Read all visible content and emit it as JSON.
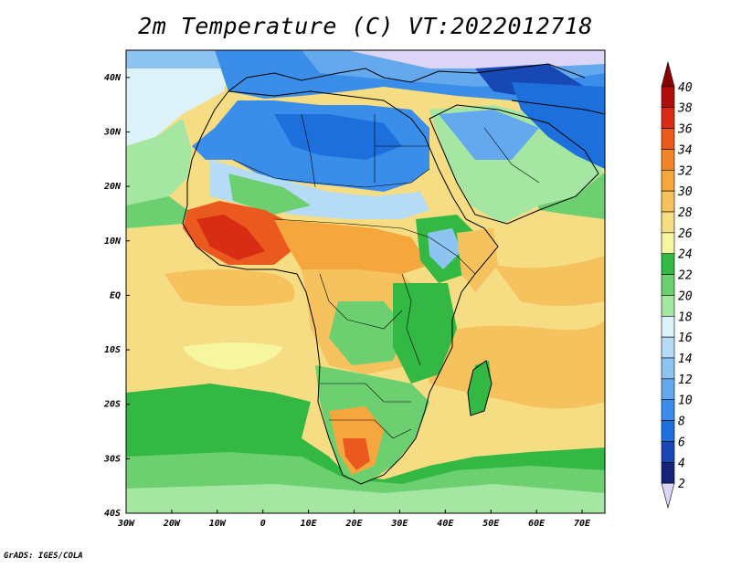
{
  "title": "2m Temperature (C) VT:2022012718",
  "footer": "GrADS: IGES/COLA",
  "map": {
    "lon_range": [
      -30,
      75
    ],
    "lat_range": [
      -40,
      45
    ],
    "lon_ticks": [
      {
        "value": -30,
        "label": "30W"
      },
      {
        "value": -20,
        "label": "20W"
      },
      {
        "value": -10,
        "label": "10W"
      },
      {
        "value": 0,
        "label": "0"
      },
      {
        "value": 10,
        "label": "10E"
      },
      {
        "value": 20,
        "label": "20E"
      },
      {
        "value": 30,
        "label": "30E"
      },
      {
        "value": 40,
        "label": "40E"
      },
      {
        "value": 50,
        "label": "50E"
      },
      {
        "value": 60,
        "label": "60E"
      },
      {
        "value": 70,
        "label": "70E"
      }
    ],
    "lat_ticks": [
      {
        "value": 40,
        "label": "40N"
      },
      {
        "value": 30,
        "label": "30N"
      },
      {
        "value": 20,
        "label": "20N"
      },
      {
        "value": 10,
        "label": "10N"
      },
      {
        "value": 0,
        "label": "EQ"
      },
      {
        "value": -10,
        "label": "10S"
      },
      {
        "value": -20,
        "label": "20S"
      },
      {
        "value": -30,
        "label": "30S"
      },
      {
        "value": -40,
        "label": "40S"
      }
    ]
  },
  "colorbar": {
    "levels": [
      "2",
      "4",
      "6",
      "8",
      "10",
      "12",
      "14",
      "16",
      "18",
      "20",
      "22",
      "24",
      "26",
      "28",
      "30",
      "32",
      "34",
      "36",
      "38",
      "40"
    ],
    "colors": [
      "#ddd5f6",
      "#16237c",
      "#1848b4",
      "#1d6fdc",
      "#3a8de8",
      "#64a8ee",
      "#8ec4f2",
      "#b6dbf6",
      "#dcf2f8",
      "#a6e6a3",
      "#6cd070",
      "#34b844",
      "#f6f6a0",
      "#f6dc82",
      "#f5c25e",
      "#f5a63c",
      "#f1852a",
      "#ea5a1e",
      "#d82c14",
      "#b00e0c",
      "#8a0000"
    ]
  }
}
